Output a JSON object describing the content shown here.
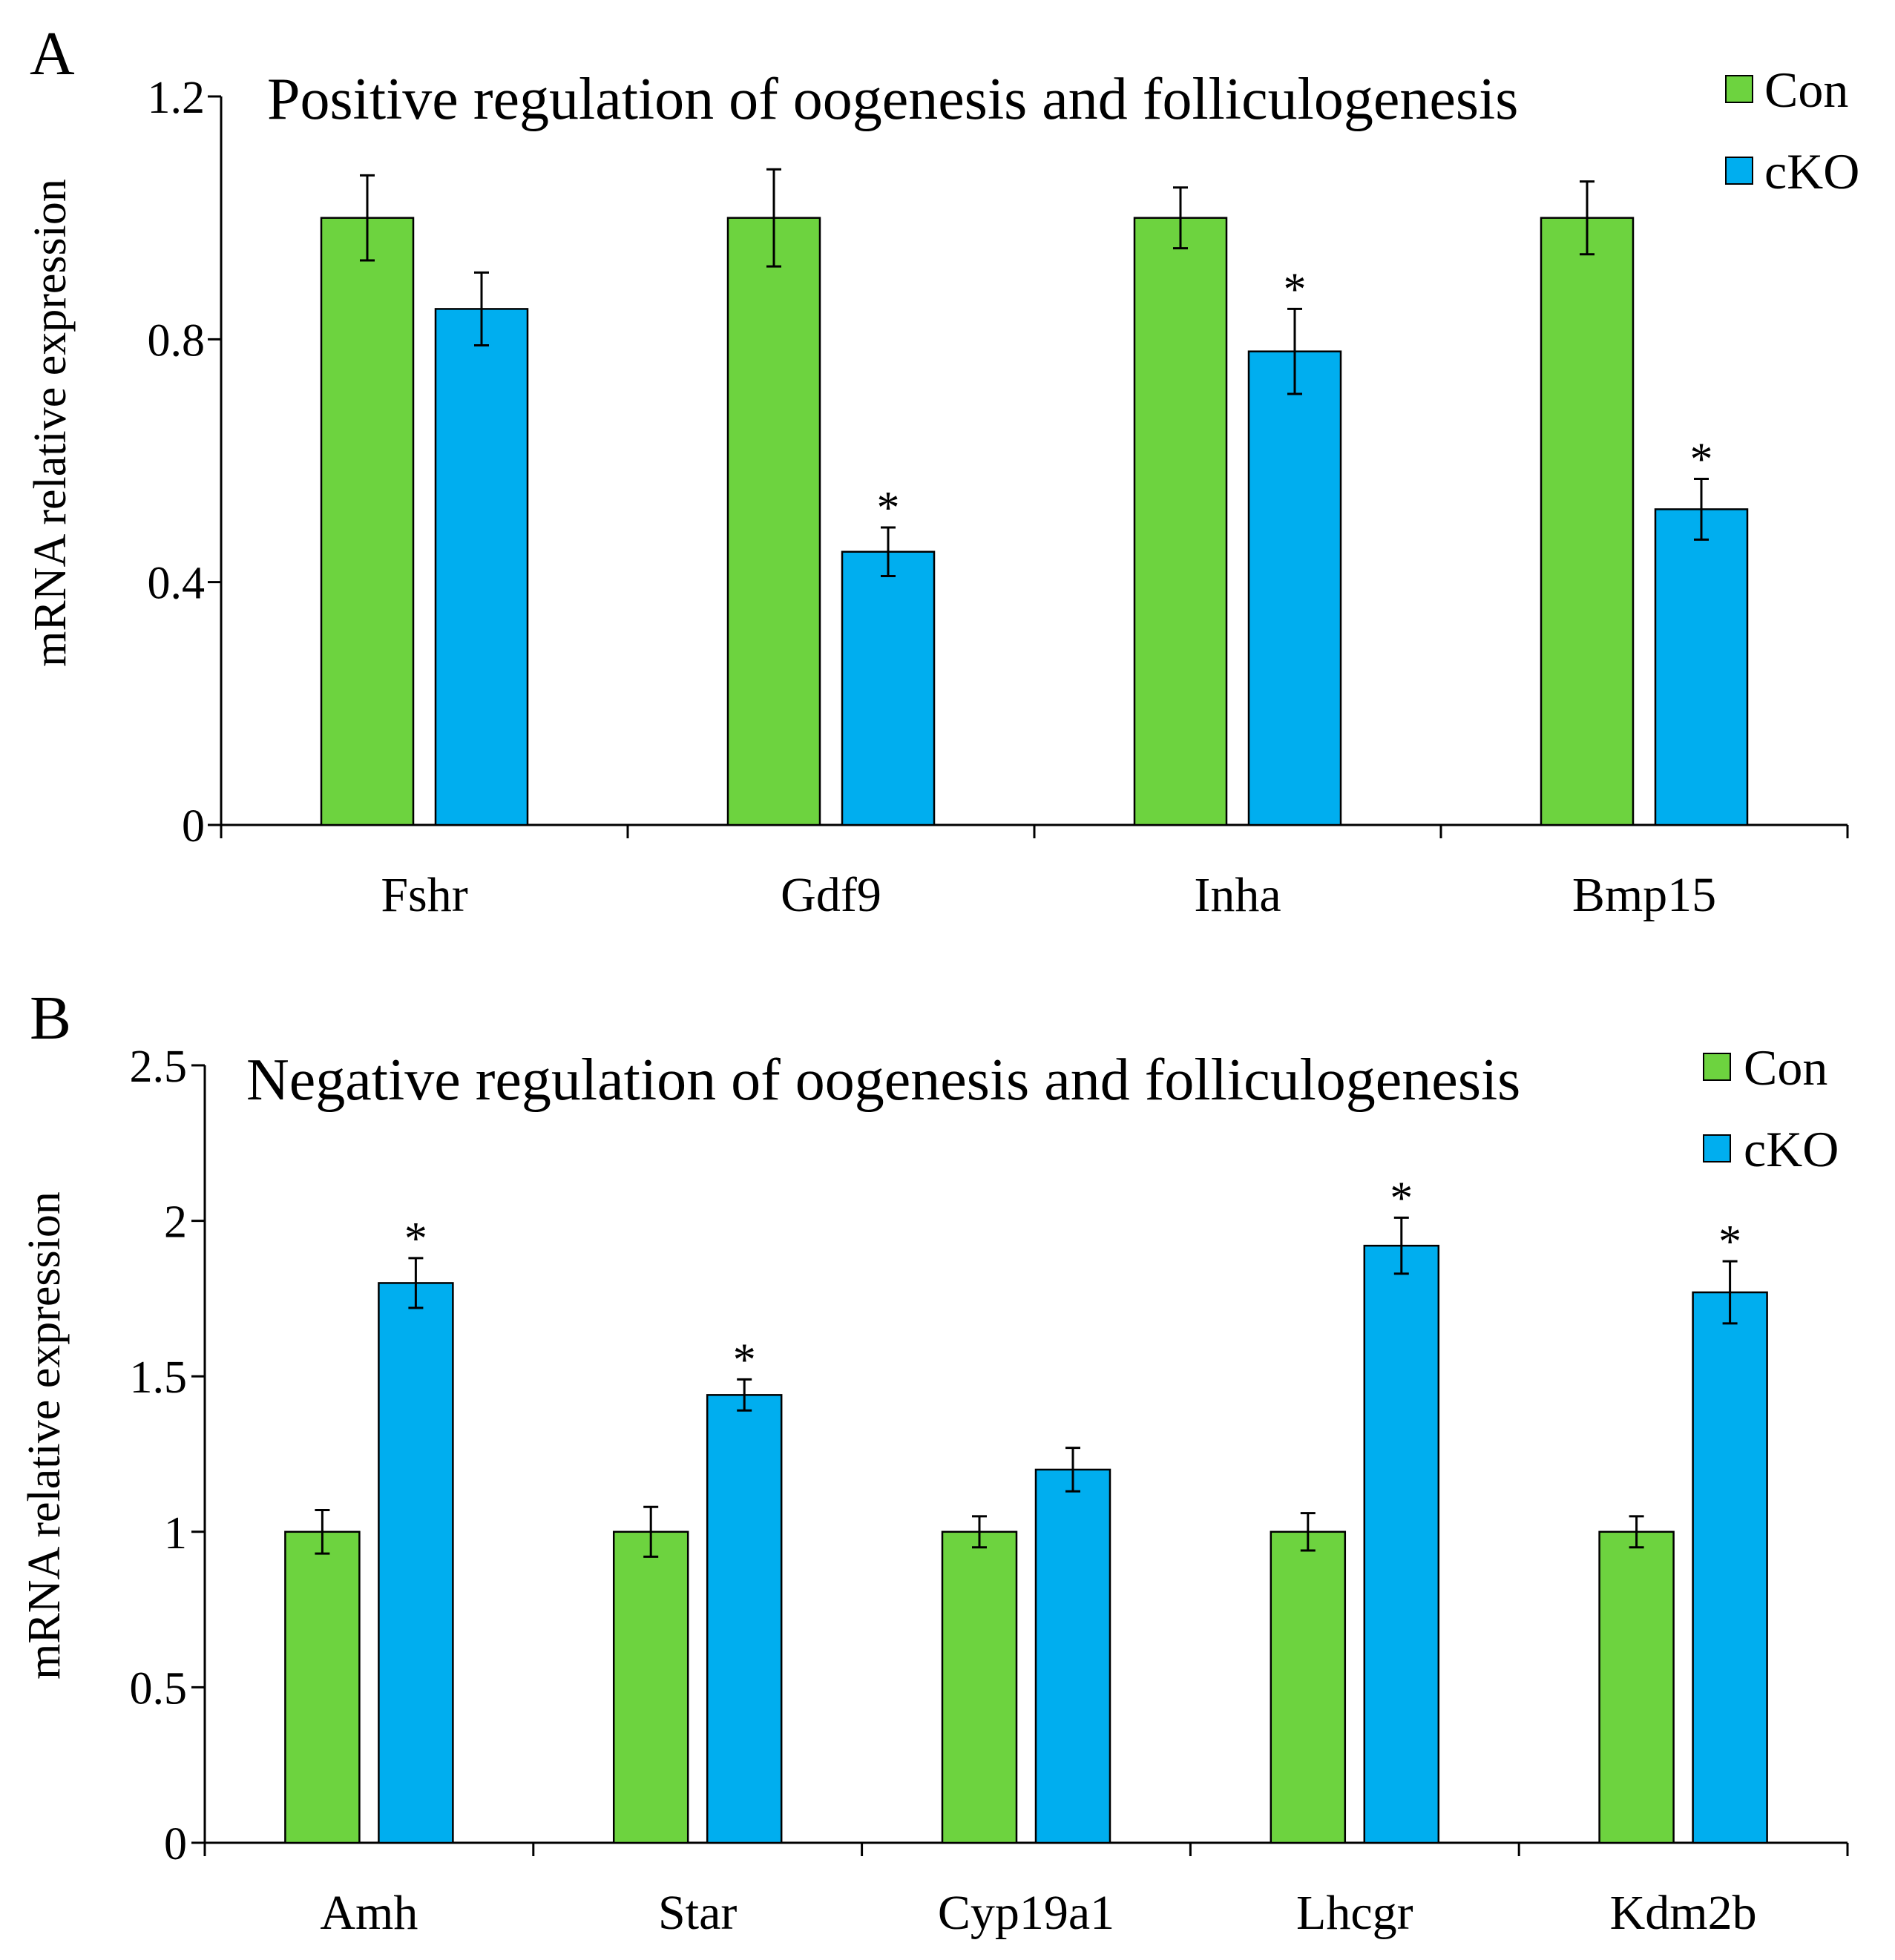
{
  "colors": {
    "con": "#6dd33f",
    "cko": "#00aeef",
    "axis": "#000000"
  },
  "legend": {
    "con": "Con",
    "cko": "cKO"
  },
  "significance_marker": "*",
  "chart_data": [
    {
      "panel": "A",
      "type": "bar",
      "title": "Positive regulation of oogenesis and folliculogenesis",
      "xlabel": "",
      "ylabel": "mRNA relative expression",
      "ylim": [
        0,
        1.2
      ],
      "yticks": [
        0,
        0.4,
        0.8,
        1.2
      ],
      "ytick_labels": [
        "0",
        "0.4",
        "0.8",
        "1.2"
      ],
      "grid": false,
      "legend_position": "top-right",
      "categories": [
        "Fshr",
        "Gdf9",
        "Inha",
        "Bmp15"
      ],
      "series": [
        {
          "name": "Con",
          "values": [
            1.0,
            1.0,
            1.0,
            1.0
          ],
          "errors": [
            0.07,
            0.08,
            0.05,
            0.06
          ],
          "significant": [
            false,
            false,
            false,
            false
          ]
        },
        {
          "name": "cKO",
          "values": [
            0.85,
            0.45,
            0.78,
            0.52
          ],
          "errors": [
            0.06,
            0.04,
            0.07,
            0.05
          ],
          "significant": [
            false,
            true,
            true,
            true
          ]
        }
      ]
    },
    {
      "panel": "B",
      "type": "bar",
      "title": "Negative regulation of oogenesis and folliculogenesis",
      "xlabel": "",
      "ylabel": "mRNA relative expression",
      "ylim": [
        0,
        2.5
      ],
      "yticks": [
        0,
        0.5,
        1,
        1.5,
        2,
        2.5
      ],
      "ytick_labels": [
        "0",
        "0.5",
        "1",
        "1.5",
        "2",
        "2.5"
      ],
      "grid": false,
      "legend_position": "top-right",
      "categories": [
        "Amh",
        "Star",
        "Cyp19a1",
        "Lhcgr",
        "Kdm2b"
      ],
      "series": [
        {
          "name": "Con",
          "values": [
            1.0,
            1.0,
            1.0,
            1.0,
            1.0
          ],
          "errors": [
            0.07,
            0.08,
            0.05,
            0.06,
            0.05
          ],
          "significant": [
            false,
            false,
            false,
            false,
            false
          ]
        },
        {
          "name": "cKO",
          "values": [
            1.8,
            1.44,
            1.2,
            1.92,
            1.77
          ],
          "errors": [
            0.08,
            0.05,
            0.07,
            0.09,
            0.1
          ],
          "significant": [
            true,
            true,
            false,
            true,
            true
          ]
        }
      ]
    }
  ]
}
